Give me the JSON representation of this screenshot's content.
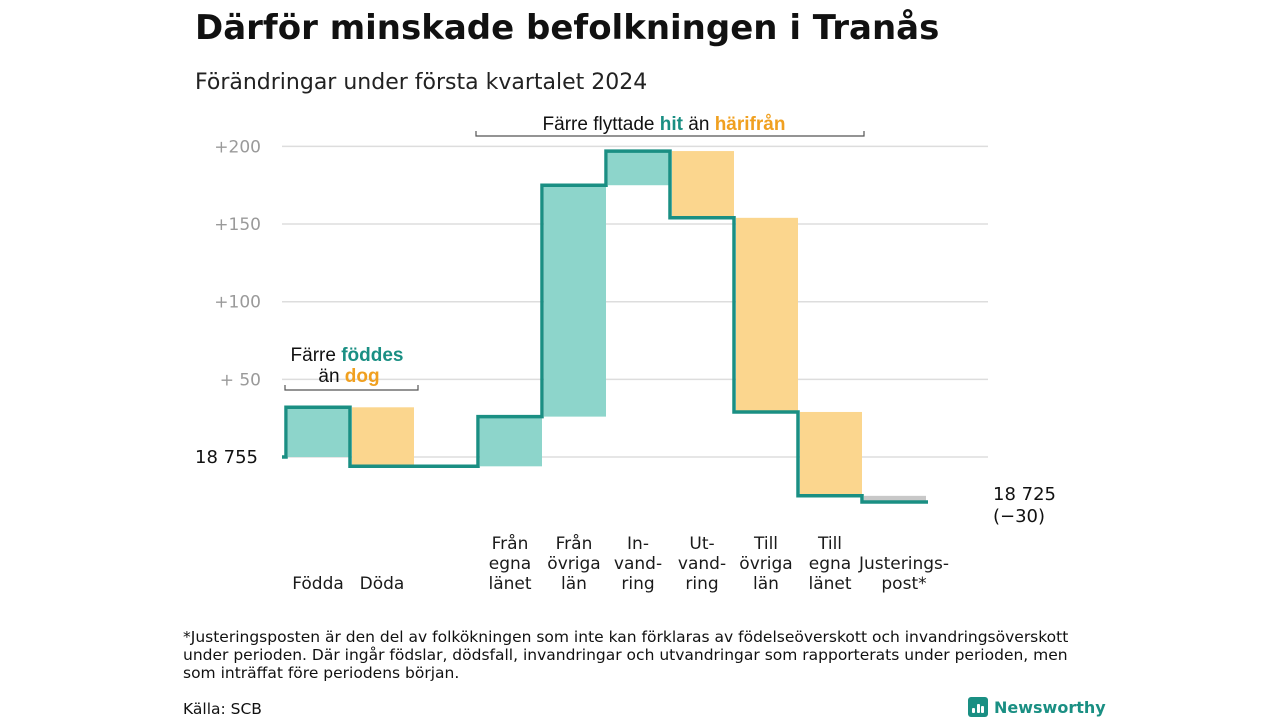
{
  "header": {
    "title": "Därför minskade befolkningen i Tranås",
    "subtitle": "Förändringar under första kvartalet 2024"
  },
  "chart_data": {
    "type": "waterfall",
    "start_value": 18755,
    "start_label": "18  755",
    "end_label": "18 725",
    "end_change_label": "(−30)",
    "y_ticks": [
      {
        "value": 200,
        "label": "+200"
      },
      {
        "value": 150,
        "label": "+150"
      },
      {
        "value": 100,
        "label": "+100"
      },
      {
        "value": 50,
        "label": "+  50"
      }
    ],
    "ylim": [
      -30,
      205
    ],
    "steps": [
      {
        "name": "Födda",
        "label_lines": [
          "Födda"
        ],
        "delta": 32,
        "kind": "in"
      },
      {
        "name": "Döda",
        "label_lines": [
          "Döda"
        ],
        "delta": -38,
        "kind": "out"
      },
      {
        "name": "",
        "label_lines": [],
        "delta": 0,
        "kind": "gap"
      },
      {
        "name": "Från egna länet",
        "label_lines": [
          "Från",
          "egna",
          "länet"
        ],
        "delta": 32,
        "kind": "in"
      },
      {
        "name": "Från övriga län",
        "label_lines": [
          "Från",
          "övriga",
          "län"
        ],
        "delta": 149,
        "kind": "in"
      },
      {
        "name": "Invandring",
        "label_lines": [
          "In-",
          "vand-",
          "ring"
        ],
        "delta": 22,
        "kind": "in"
      },
      {
        "name": "Utvandring",
        "label_lines": [
          "Ut-",
          "vand-",
          "ring"
        ],
        "delta": -43,
        "kind": "out"
      },
      {
        "name": "Till övriga län",
        "label_lines": [
          "Till",
          "övriga",
          "län"
        ],
        "delta": -125,
        "kind": "out"
      },
      {
        "name": "Till egna länet",
        "label_lines": [
          "Till",
          "egna",
          "länet"
        ],
        "delta": -54,
        "kind": "out"
      },
      {
        "name": "Justeringspost*",
        "label_lines": [
          "Justerings-",
          "post*"
        ],
        "delta": -4,
        "kind": "adj"
      }
    ],
    "annotations": [
      {
        "parts": [
          {
            "text": "Färre ",
            "color": "#111111",
            "bold": false
          },
          {
            "text": "föddes",
            "color": "#1a8f83",
            "bold": true
          }
        ]
      },
      {
        "parts": [
          {
            "text": "än ",
            "color": "#111111",
            "bold": false
          },
          {
            "text": "dog",
            "color": "#f0a020",
            "bold": true
          }
        ]
      },
      {
        "parts": [
          {
            "text": "Färre flyttade ",
            "color": "#111111",
            "bold": false
          },
          {
            "text": "hit",
            "color": "#1a8f83",
            "bold": true
          },
          {
            "text": "  än ",
            "color": "#111111",
            "bold": false
          },
          {
            "text": "härifrån",
            "color": "#f0a020",
            "bold": true
          }
        ]
      }
    ],
    "colors": {
      "increase_fill": "#8dd5cb",
      "decrease_fill": "#fbd68e",
      "adjustment_fill": "#c8c8c8",
      "line": "#1a8f83",
      "grid": "#dddddd"
    },
    "grid": true
  },
  "footer": {
    "footnote": "*Justeringsposten är den del av folkökningen som inte kan förklaras av födelseöverskott och invandringsöverskott under perioden. Där ingår födslar, dödsfall, invandringar och utvandringar som rapporterats under perioden, men som inträffat före periodens början.",
    "source": "Källa: SCB",
    "brand": "Newsworthy"
  }
}
